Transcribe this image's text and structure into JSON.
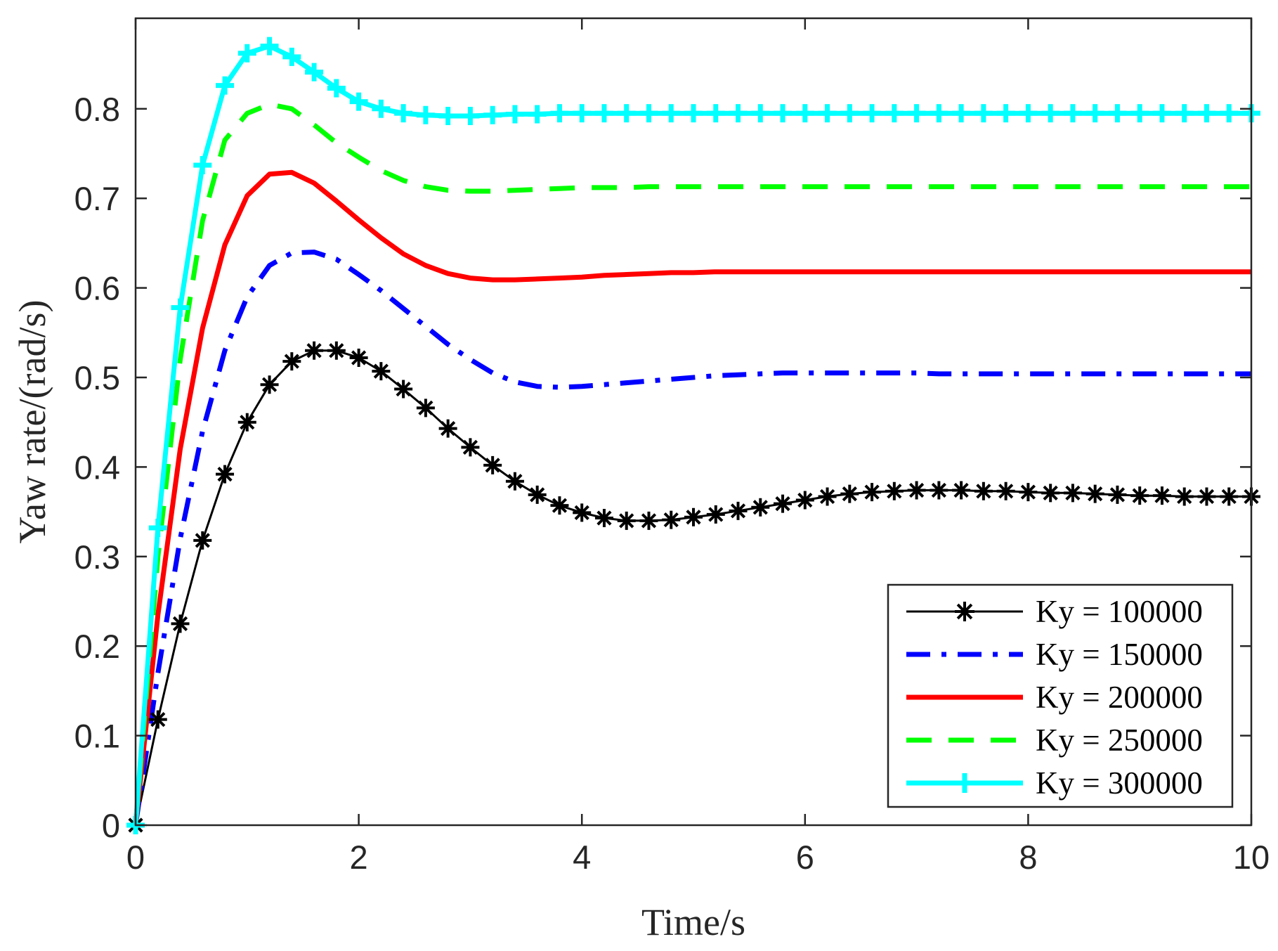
{
  "chart_data": {
    "type": "line",
    "title": "",
    "xlabel": "Time/s",
    "ylabel": "Yaw rate/(rad/s)",
    "xlim": [
      0,
      10
    ],
    "ylim": [
      0,
      0.9
    ],
    "xticks": [
      0,
      2,
      4,
      6,
      8,
      10
    ],
    "yticks": [
      0,
      0.1,
      0.2,
      0.3,
      0.4,
      0.5,
      0.6,
      0.7,
      0.8
    ],
    "grid": false,
    "legend_location": "bottom-right",
    "x": [
      0,
      0.2,
      0.4,
      0.6,
      0.8,
      1.0,
      1.2,
      1.4,
      1.6,
      1.8,
      2.0,
      2.2,
      2.4,
      2.6,
      2.8,
      3.0,
      3.2,
      3.4,
      3.6,
      3.8,
      4.0,
      4.2,
      4.4,
      4.6,
      4.8,
      5.0,
      5.2,
      5.4,
      5.6,
      5.8,
      6.0,
      6.2,
      6.4,
      6.6,
      6.8,
      7.0,
      7.2,
      7.4,
      7.6,
      7.8,
      8.0,
      8.2,
      8.4,
      8.6,
      8.8,
      9.0,
      9.2,
      9.4,
      9.6,
      9.8,
      10.0
    ],
    "series": [
      {
        "name": "Ky = 100000",
        "color": "#000000",
        "style": "solid-asterisk",
        "values": [
          0,
          0.118,
          0.225,
          0.318,
          0.392,
          0.45,
          0.492,
          0.518,
          0.53,
          0.53,
          0.522,
          0.507,
          0.487,
          0.466,
          0.443,
          0.422,
          0.402,
          0.384,
          0.369,
          0.357,
          0.349,
          0.343,
          0.34,
          0.34,
          0.341,
          0.344,
          0.347,
          0.351,
          0.355,
          0.359,
          0.363,
          0.367,
          0.37,
          0.372,
          0.373,
          0.374,
          0.374,
          0.374,
          0.373,
          0.373,
          0.372,
          0.371,
          0.371,
          0.37,
          0.369,
          0.368,
          0.368,
          0.367,
          0.367,
          0.367,
          0.367
        ]
      },
      {
        "name": "Ky = 150000",
        "color": "#0000ff",
        "style": "dash-dot",
        "values": [
          0,
          0.17,
          0.32,
          0.44,
          0.53,
          0.59,
          0.625,
          0.639,
          0.64,
          0.632,
          0.615,
          0.597,
          0.577,
          0.557,
          0.537,
          0.52,
          0.505,
          0.495,
          0.49,
          0.489,
          0.49,
          0.492,
          0.494,
          0.496,
          0.498,
          0.5,
          0.502,
          0.503,
          0.504,
          0.505,
          0.505,
          0.505,
          0.505,
          0.505,
          0.505,
          0.505,
          0.504,
          0.504,
          0.504,
          0.504,
          0.504,
          0.504,
          0.504,
          0.504,
          0.504,
          0.504,
          0.504,
          0.504,
          0.504,
          0.504,
          0.504
        ]
      },
      {
        "name": "Ky = 200000",
        "color": "#ff0000",
        "style": "solid",
        "values": [
          0,
          0.235,
          0.42,
          0.555,
          0.648,
          0.703,
          0.727,
          0.729,
          0.717,
          0.697,
          0.676,
          0.656,
          0.638,
          0.625,
          0.616,
          0.611,
          0.609,
          0.609,
          0.61,
          0.611,
          0.612,
          0.614,
          0.615,
          0.616,
          0.617,
          0.617,
          0.618,
          0.618,
          0.618,
          0.618,
          0.618,
          0.618,
          0.618,
          0.618,
          0.618,
          0.618,
          0.618,
          0.618,
          0.618,
          0.618,
          0.618,
          0.618,
          0.618,
          0.618,
          0.618,
          0.618,
          0.618,
          0.618,
          0.618,
          0.618,
          0.618
        ]
      },
      {
        "name": "Ky = 250000",
        "color": "#00ff00",
        "style": "dashed",
        "values": [
          0,
          0.3,
          0.52,
          0.675,
          0.765,
          0.795,
          0.805,
          0.8,
          0.782,
          0.762,
          0.746,
          0.731,
          0.72,
          0.713,
          0.709,
          0.708,
          0.708,
          0.709,
          0.71,
          0.711,
          0.712,
          0.712,
          0.712,
          0.713,
          0.713,
          0.713,
          0.713,
          0.713,
          0.713,
          0.713,
          0.713,
          0.713,
          0.713,
          0.713,
          0.713,
          0.713,
          0.713,
          0.713,
          0.713,
          0.713,
          0.713,
          0.713,
          0.713,
          0.713,
          0.713,
          0.713,
          0.713,
          0.713,
          0.713,
          0.713,
          0.713
        ]
      },
      {
        "name": "Ky = 300000",
        "color": "#00ffff",
        "style": "solid-plus",
        "values": [
          0,
          0.332,
          0.578,
          0.737,
          0.826,
          0.862,
          0.87,
          0.858,
          0.841,
          0.823,
          0.808,
          0.8,
          0.795,
          0.793,
          0.792,
          0.792,
          0.793,
          0.794,
          0.794,
          0.795,
          0.795,
          0.795,
          0.795,
          0.795,
          0.795,
          0.795,
          0.795,
          0.795,
          0.795,
          0.795,
          0.795,
          0.795,
          0.795,
          0.795,
          0.795,
          0.795,
          0.795,
          0.795,
          0.795,
          0.795,
          0.795,
          0.795,
          0.795,
          0.795,
          0.795,
          0.795,
          0.795,
          0.795,
          0.795,
          0.795,
          0.795
        ]
      }
    ]
  }
}
